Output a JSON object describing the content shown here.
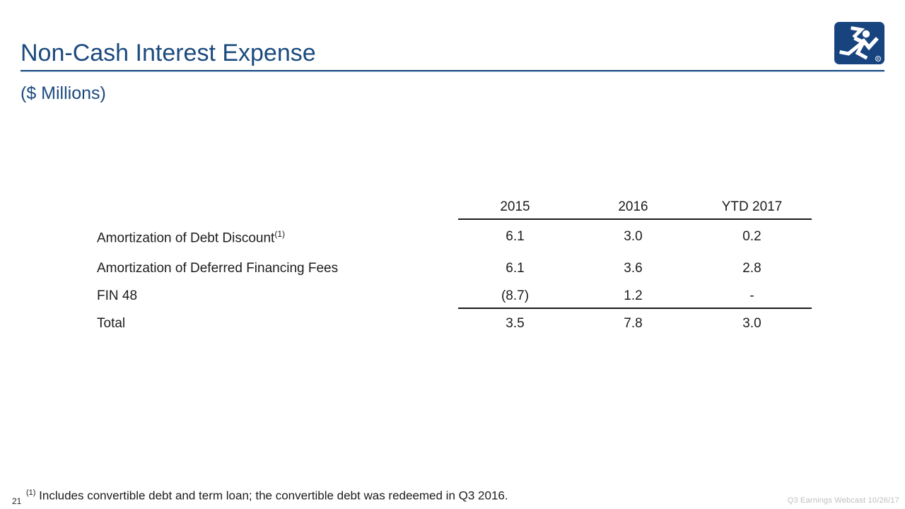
{
  "slide": {
    "title": "Non-Cash Interest Expense",
    "subtitle": "($ Millions)",
    "page_number": "21",
    "footer_right": "Q3 Earnings Webcast 10/26/17",
    "footnote_marker": "(1)",
    "footnote_text": " Includes convertible debt and term loan; the convertible debt was redeemed in Q3 2016.",
    "logo_name": "running-man-logo",
    "logo_registered_mark": "R",
    "colors": {
      "title_blue": "#1B4A7E",
      "logo_blue": "#17437E",
      "table_text": "#1C1C1C",
      "rule_black": "#1A1A1A",
      "footer_gray": "#BEBEBE"
    }
  },
  "chart_data": {
    "type": "table",
    "title": "Non-Cash Interest Expense ($ Millions)",
    "columns": [
      "2015",
      "2016",
      "YTD 2017"
    ],
    "rows": [
      {
        "label": "Amortization of Debt Discount",
        "sup": "(1)",
        "values": [
          "6.1",
          "3.0",
          "0.2"
        ]
      },
      {
        "label": "Amortization of Deferred Financing Fees",
        "sup": "",
        "values": [
          "6.1",
          "3.6",
          "2.8"
        ]
      },
      {
        "label": "FIN 48",
        "sup": "",
        "values": [
          "(8.7)",
          "1.2",
          "-"
        ]
      },
      {
        "label": "Total",
        "sup": "",
        "values": [
          "3.5",
          "7.8",
          "3.0"
        ]
      }
    ]
  }
}
